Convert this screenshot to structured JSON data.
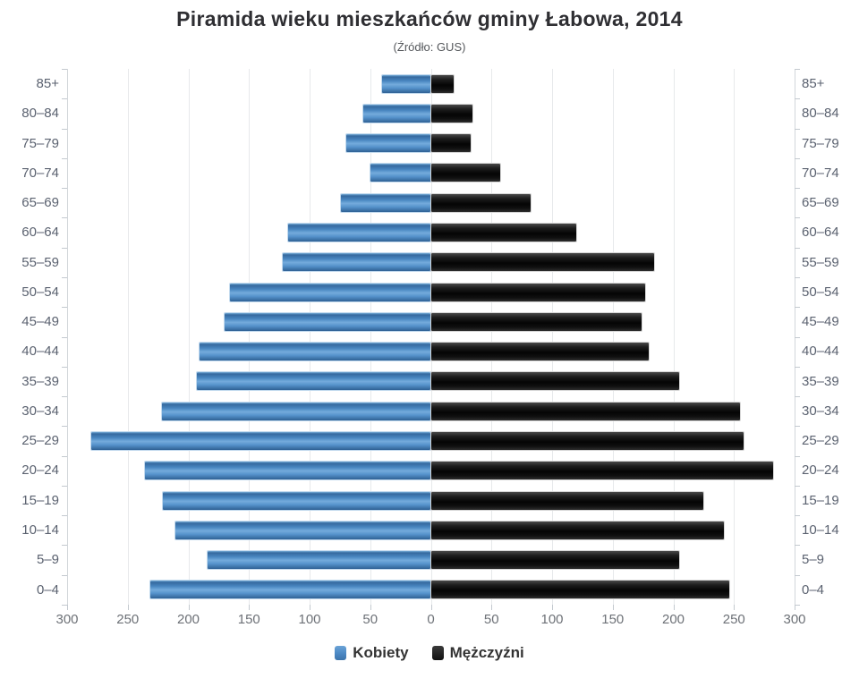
{
  "chart_data": {
    "type": "bar",
    "orientation": "horizontal",
    "variant": "population_pyramid",
    "title": "Piramida wieku mieszkańców gminy Łabowa, 2014",
    "subtitle": "(Źródło: GUS)",
    "categories": [
      "85+",
      "80–84",
      "75–79",
      "70–74",
      "65–69",
      "60–64",
      "55–59",
      "50–54",
      "45–49",
      "40–44",
      "35–39",
      "30–34",
      "25–29",
      "20–24",
      "15–19",
      "10–14",
      "5–9",
      "0–4"
    ],
    "categories_order": "top_to_bottom",
    "series": [
      {
        "name": "Kobiety",
        "side": "left",
        "color": "#4d8ac6",
        "values": [
          40,
          56,
          70,
          50,
          74,
          118,
          122,
          166,
          170,
          191,
          193,
          222,
          280,
          236,
          221,
          211,
          184,
          231
        ]
      },
      {
        "name": "Mężczyźni",
        "side": "right",
        "color": "#141414",
        "values": [
          19,
          34,
          33,
          57,
          82,
          120,
          184,
          177,
          174,
          180,
          205,
          255,
          258,
          282,
          225,
          242,
          205,
          246
        ]
      }
    ],
    "x_axis": {
      "tick_labels": [
        "300",
        "250",
        "200",
        "150",
        "100",
        "50",
        "0",
        "50",
        "100",
        "150",
        "200",
        "250",
        "300"
      ],
      "max_per_side": 300,
      "gridlines": true
    },
    "y_axis": {
      "mirrored_labels": true
    },
    "legend_position": "bottom",
    "legend": {
      "items": [
        {
          "label": "Kobiety",
          "color": "#4d8ac6"
        },
        {
          "label": "Mężczyźni",
          "color": "#141414"
        }
      ]
    }
  },
  "colors": {
    "background": "#ffffff",
    "women_bar": "#4d8ac6",
    "men_bar": "#141414",
    "gridline": "#e7e9eb",
    "axis_line": "#d2d6da",
    "tick": "#c3c9cf",
    "category_label": "#5b6270",
    "x_tick_label": "#6d7177",
    "title": "#2f2f33",
    "subtitle": "#55585c",
    "legend_text": "#333333"
  }
}
